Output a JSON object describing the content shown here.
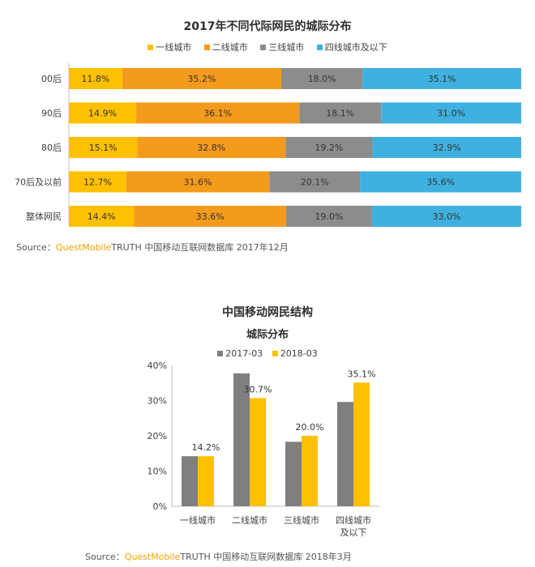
{
  "chart_data": [
    {
      "type": "bar",
      "orientation": "horizontal",
      "stacked": "percent",
      "title": "2017年不同代际网民的城际分布",
      "categories": [
        "00后",
        "90后",
        "80后",
        "70后及以前",
        "整体网民"
      ],
      "series": [
        {
          "name": "一线城市",
          "color": "#ffc000",
          "values": [
            11.8,
            14.9,
            15.1,
            12.7,
            14.4
          ],
          "labels": [
            "11.8%",
            "14.9%",
            "15.1%",
            "12.7%",
            "14.4%"
          ]
        },
        {
          "name": "二线城市",
          "color": "#f49a1c",
          "values": [
            35.2,
            36.1,
            32.8,
            31.6,
            33.6
          ],
          "labels": [
            "35.2%",
            "36.1%",
            "32.8%",
            "31.6%",
            "33.6%"
          ]
        },
        {
          "name": "三线城市",
          "color": "#8c8c8c",
          "values": [
            18.0,
            18.1,
            19.2,
            20.1,
            19.0
          ],
          "labels": [
            "18.0%",
            "18.1%",
            "19.2%",
            "20.1%",
            "19.0%"
          ]
        },
        {
          "name": "四线城市及以下",
          "color": "#3fb1e0",
          "values": [
            35.1,
            31.0,
            32.9,
            35.6,
            33.0
          ],
          "labels": [
            "35.1%",
            "31.0%",
            "32.9%",
            "35.6%",
            "33.0%"
          ]
        }
      ],
      "source": {
        "prefix": "Source：",
        "brand": "QuestMobile",
        "rest": "TRUTH 中国移动互联网数据库 2017年12月"
      }
    },
    {
      "type": "bar",
      "title": "中国移动网民结构",
      "subtitle": "城际分布",
      "categories": [
        "一线城市",
        "二线城市",
        "三线城市",
        "四线城市及以下"
      ],
      "category_lines": [
        [
          "一线城市"
        ],
        [
          "二线城市"
        ],
        [
          "三线城市"
        ],
        [
          "四线城市",
          "及以下"
        ]
      ],
      "series": [
        {
          "name": "2017-03",
          "color": "#7f7f7f",
          "values": [
            14.2,
            37.7,
            18.3,
            29.6
          ]
        },
        {
          "name": "2018-03",
          "color": "#ffc000",
          "values": [
            14.2,
            30.7,
            20.0,
            35.1
          ],
          "labels": [
            "14.2%",
            "30.7%",
            "20.0%",
            "35.1%"
          ]
        }
      ],
      "ylim": [
        0,
        40
      ],
      "yticks": [
        "0%",
        "10%",
        "20%",
        "30%",
        "40%"
      ],
      "grid": false,
      "legend": "top",
      "source": {
        "prefix": "Source：",
        "brand": "QuestMobile",
        "rest": "TRUTH 中国移动互联网数据库 2018年3月"
      }
    }
  ]
}
